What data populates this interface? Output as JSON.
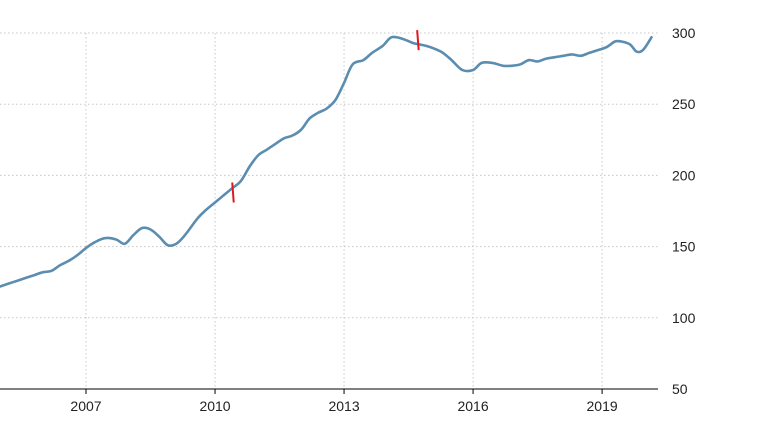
{
  "chart_data": {
    "type": "line",
    "title": "",
    "xlabel": "",
    "ylabel": "",
    "x_ticks": [
      "2007",
      "2010",
      "2013",
      "2016",
      "2019"
    ],
    "y_ticks": [
      50,
      100,
      150,
      200,
      250,
      300
    ],
    "xlim": [
      2005.0,
      2020.3
    ],
    "ylim": [
      50,
      300
    ],
    "y_axis_position": "right",
    "grid": true,
    "legend": "none",
    "colors": {
      "line": "#5b8db0",
      "marker": "#e0191f",
      "grid": "#c8c8c8",
      "text": "#222222"
    },
    "series": [
      {
        "x": [
          2005.0,
          2005.3,
          2005.6,
          2005.8,
          2006.0,
          2006.2,
          2006.4,
          2006.6,
          2006.8,
          2007.0,
          2007.2,
          2007.45,
          2007.7,
          2007.9,
          2008.1,
          2008.3,
          2008.5,
          2008.7,
          2008.9,
          2009.1,
          2009.3,
          2009.6,
          2009.8,
          2010.0,
          2010.2,
          2010.4,
          2010.6,
          2010.8,
          2011.0,
          2011.2,
          2011.4,
          2011.6,
          2011.8,
          2012.0,
          2012.2,
          2012.4,
          2012.6,
          2012.8,
          2013.0,
          2013.2,
          2013.45,
          2013.65,
          2013.9,
          2014.1,
          2014.35,
          2014.6,
          2014.75,
          2014.9,
          2015.1,
          2015.3,
          2015.5,
          2015.75,
          2016.0,
          2016.2,
          2016.45,
          2016.7,
          2016.9,
          2017.1,
          2017.3,
          2017.5,
          2017.7,
          2017.9,
          2018.1,
          2018.3,
          2018.5,
          2018.7,
          2018.9,
          2019.1,
          2019.3,
          2019.45,
          2019.65,
          2019.8,
          2019.95,
          2020.15
        ],
        "values": [
          122,
          125,
          128,
          130,
          132,
          133,
          137,
          140,
          144,
          149,
          153,
          156,
          155,
          152,
          158,
          163,
          162,
          157,
          151,
          152,
          158,
          170,
          176,
          181,
          186,
          191,
          196,
          206,
          214,
          218,
          222,
          226,
          228,
          232,
          240,
          244,
          247,
          253,
          265,
          278,
          281,
          286,
          291,
          297,
          296,
          293,
          292,
          291,
          289,
          286,
          281,
          274,
          274,
          279,
          279,
          277,
          277,
          278,
          281,
          280,
          282,
          283,
          284,
          285,
          284,
          286,
          288,
          290,
          294,
          294,
          292,
          287,
          288,
          297
        ]
      }
    ],
    "annotations": [
      {
        "type": "marker",
        "x": 2010.4,
        "y": 188
      },
      {
        "type": "marker",
        "x": 2014.7,
        "y": 295
      }
    ]
  }
}
